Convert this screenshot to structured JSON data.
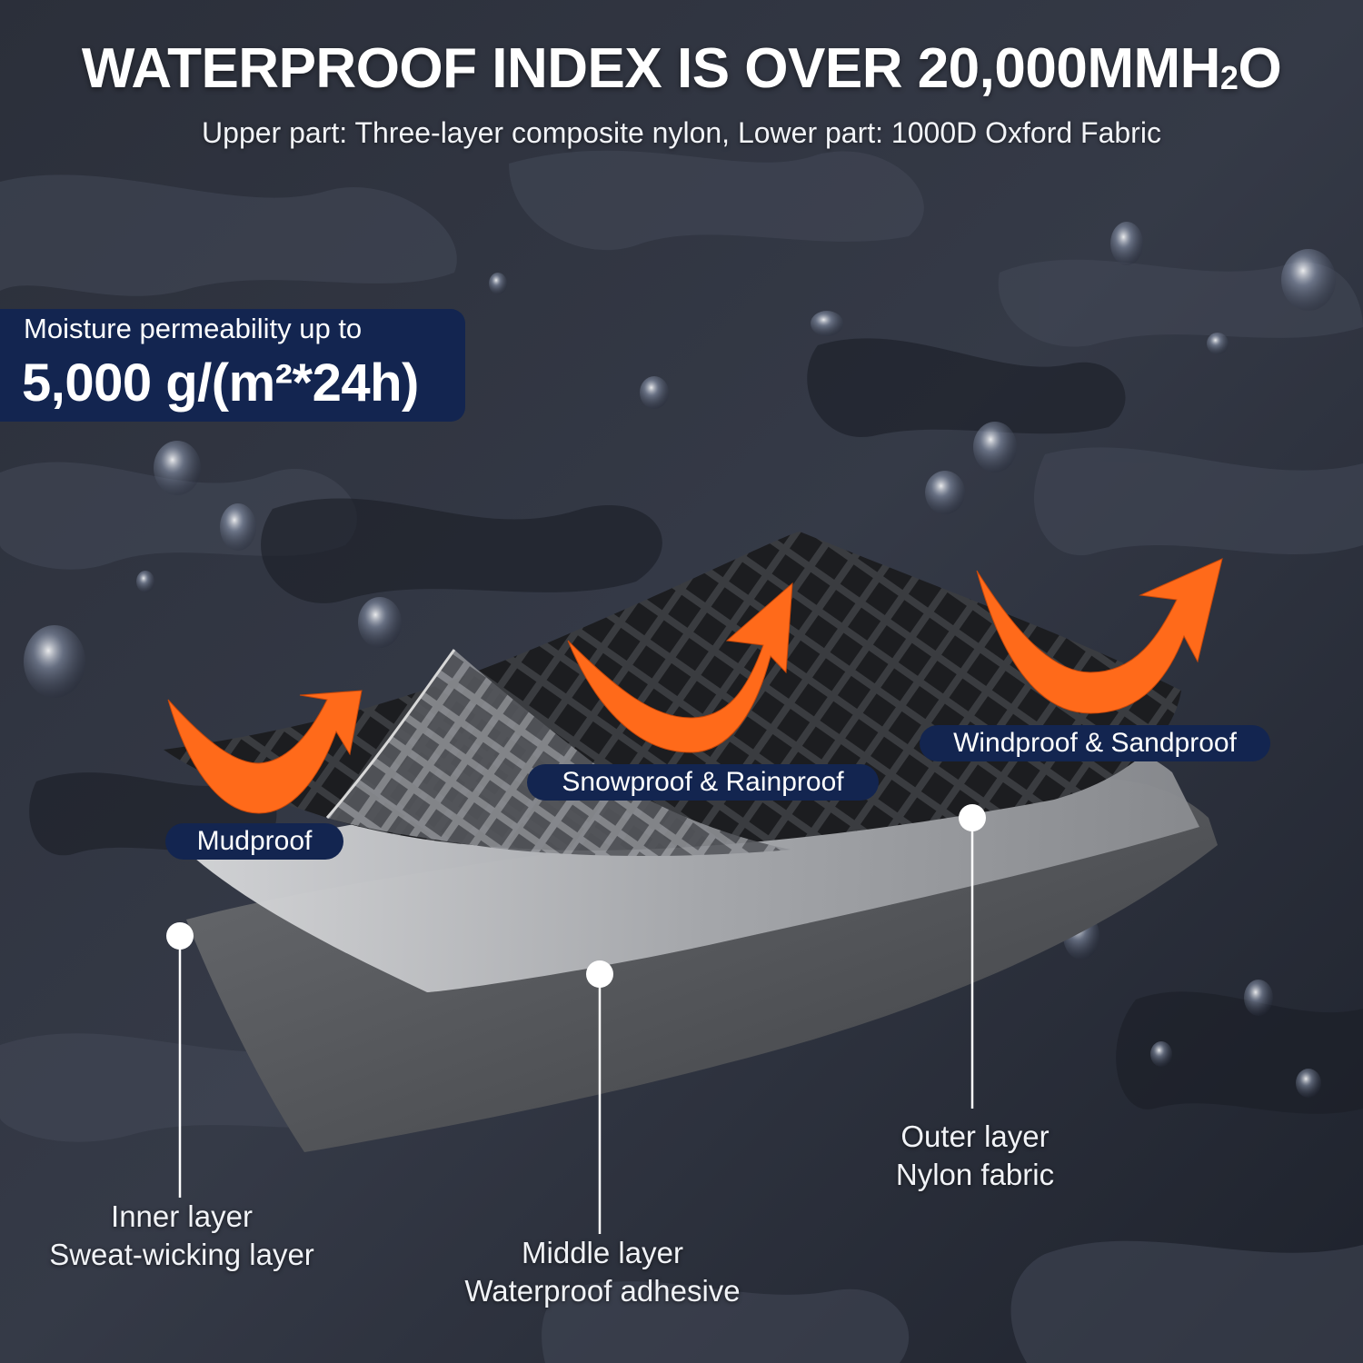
{
  "header": {
    "title_main": "WATERPROOF INDEX IS OVER 20,000MMH",
    "title_sub": "2",
    "title_end": "O",
    "subtitle": "Upper part: Three-layer composite nylon, Lower part: 1000D Oxford Fabric"
  },
  "moisture": {
    "line1": "Moisture permeability up to",
    "line2": "5,000 g/(m²*24h)"
  },
  "features": {
    "mudproof": "Mudproof",
    "snowproof": "Snowproof & Rainproof",
    "windproof": "Windproof & Sandproof"
  },
  "layers": {
    "inner": {
      "name": "Inner layer",
      "desc": "Sweat-wicking layer"
    },
    "middle": {
      "name": "Middle layer",
      "desc": "Waterproof adhesive"
    },
    "outer": {
      "name": "Outer layer",
      "desc": "Nylon fabric"
    }
  },
  "colors": {
    "badge": "#132550",
    "arrow": "#ff6a1a",
    "background": "#2a2f3c"
  }
}
